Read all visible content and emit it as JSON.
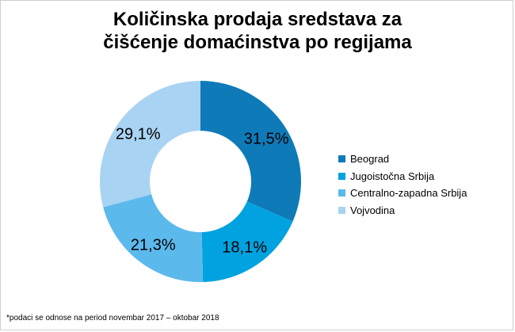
{
  "chart_data": {
    "type": "pie",
    "title_lines": [
      "Količinska prodaja sredstava za",
      "čišćenje domaćinstva po regijama"
    ],
    "categories": [
      "Beograd",
      "Jugoistočna Srbija",
      "Centralno-zapadna Srbija",
      "Vojvodina"
    ],
    "values": [
      31.5,
      18.1,
      21.3,
      29.1
    ],
    "labels": [
      "31,5%",
      "18,1%",
      "21,3%",
      "29,1%"
    ],
    "unit": "%",
    "donut": true,
    "legend_position": "right",
    "colors": [
      "#0f7ab8",
      "#00a2e0",
      "#5cb9ec",
      "#a9d3f3"
    ],
    "footnote": "*podaci se odnose na period novembar 2017 – oktobar 2018"
  }
}
